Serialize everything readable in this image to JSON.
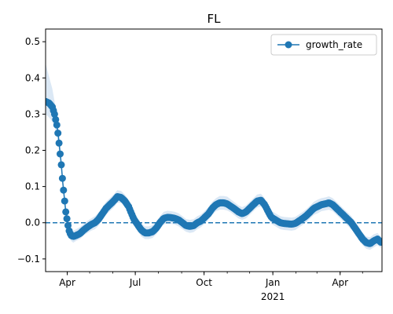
{
  "chart_data": {
    "type": "line",
    "title": "FL",
    "xlabel": "",
    "ylabel": "",
    "x_ticks": [
      {
        "date": "2020-04-01",
        "label": "Apr"
      },
      {
        "date": "2020-07-01",
        "label": "Jul"
      },
      {
        "date": "2020-10-01",
        "label": "Oct"
      },
      {
        "date": "2021-01-01",
        "label": "Jan"
      },
      {
        "date": "2021-04-01",
        "label": "Apr"
      }
    ],
    "x_year_label": "2021",
    "x_range": [
      "2020-03-03",
      "2021-05-27"
    ],
    "y_range": [
      -0.135,
      0.535
    ],
    "y_ticks": [
      -0.1,
      0.0,
      0.1,
      0.2,
      0.3,
      0.4,
      0.5
    ],
    "y_tick_labels": [
      "−0.1",
      "0.0",
      "0.1",
      "0.2",
      "0.3",
      "0.4",
      "0.5"
    ],
    "reference_line": {
      "y": 0.0,
      "style": "dashed"
    },
    "grid": false,
    "legend_position": "top-right",
    "colors": {
      "series": "#1f77b4",
      "band": "#dbe8f5"
    },
    "series": [
      {
        "name": "growth_rate",
        "x": [
          "2020-03-03",
          "2020-03-08",
          "2020-03-12",
          "2020-03-15",
          "2020-03-18",
          "2020-03-20",
          "2020-03-22",
          "2020-03-24",
          "2020-03-26",
          "2020-03-28",
          "2020-03-30",
          "2020-04-01",
          "2020-04-03",
          "2020-04-06",
          "2020-04-09",
          "2020-04-13",
          "2020-04-18",
          "2020-04-23",
          "2020-04-28",
          "2020-05-03",
          "2020-05-08",
          "2020-05-13",
          "2020-05-18",
          "2020-05-23",
          "2020-05-28",
          "2020-06-02",
          "2020-06-07",
          "2020-06-12",
          "2020-06-17",
          "2020-06-22",
          "2020-06-25",
          "2020-06-29",
          "2020-07-04",
          "2020-07-09",
          "2020-07-14",
          "2020-07-19",
          "2020-07-24",
          "2020-07-29",
          "2020-08-03",
          "2020-08-08",
          "2020-08-13",
          "2020-08-18",
          "2020-08-23",
          "2020-08-28",
          "2020-09-02",
          "2020-09-07",
          "2020-09-12",
          "2020-09-17",
          "2020-09-22",
          "2020-09-27",
          "2020-10-02",
          "2020-10-07",
          "2020-10-12",
          "2020-10-17",
          "2020-10-22",
          "2020-10-27",
          "2020-11-01",
          "2020-11-06",
          "2020-11-11",
          "2020-11-16",
          "2020-11-21",
          "2020-11-26",
          "2020-12-01",
          "2020-12-06",
          "2020-12-11",
          "2020-12-16",
          "2020-12-21",
          "2020-12-26",
          "2020-12-30",
          "2021-01-03",
          "2021-01-07",
          "2021-01-11",
          "2021-01-16",
          "2021-01-21",
          "2021-01-26",
          "2021-01-31",
          "2021-02-05",
          "2021-02-10",
          "2021-02-15",
          "2021-02-20",
          "2021-02-25",
          "2021-03-02",
          "2021-03-07",
          "2021-03-12",
          "2021-03-17",
          "2021-03-22",
          "2021-03-27",
          "2021-04-01",
          "2021-04-06",
          "2021-04-11",
          "2021-04-16",
          "2021-04-21",
          "2021-04-26",
          "2021-05-01",
          "2021-05-06",
          "2021-05-11",
          "2021-05-16",
          "2021-05-21",
          "2021-05-26"
        ],
        "y": [
          0.335,
          0.33,
          0.32,
          0.3,
          0.27,
          0.24,
          0.2,
          0.16,
          0.11,
          0.07,
          0.03,
          0.005,
          -0.02,
          -0.035,
          -0.038,
          -0.035,
          -0.03,
          -0.02,
          -0.012,
          -0.005,
          0.0,
          0.01,
          0.025,
          0.04,
          0.05,
          0.06,
          0.072,
          0.07,
          0.06,
          0.045,
          0.03,
          0.01,
          -0.005,
          -0.02,
          -0.028,
          -0.028,
          -0.025,
          -0.015,
          0.0,
          0.012,
          0.015,
          0.014,
          0.012,
          0.008,
          0.0,
          -0.008,
          -0.01,
          -0.008,
          0.0,
          0.005,
          0.015,
          0.025,
          0.04,
          0.05,
          0.055,
          0.055,
          0.052,
          0.045,
          0.038,
          0.03,
          0.025,
          0.03,
          0.04,
          0.05,
          0.06,
          0.062,
          0.05,
          0.03,
          0.015,
          0.01,
          0.005,
          0.0,
          -0.002,
          -0.003,
          -0.004,
          -0.002,
          0.005,
          0.012,
          0.02,
          0.03,
          0.04,
          0.045,
          0.05,
          0.052,
          0.055,
          0.05,
          0.04,
          0.03,
          0.02,
          0.01,
          0.0,
          -0.015,
          -0.03,
          -0.045,
          -0.055,
          -0.058,
          -0.05,
          -0.045,
          -0.055
        ],
        "band_lower": [
          0.3,
          0.29,
          0.28,
          0.265,
          0.24,
          0.215,
          0.18,
          0.14,
          0.095,
          0.055,
          0.018,
          -0.01,
          -0.035,
          -0.05,
          -0.055,
          -0.05,
          -0.045,
          -0.035,
          -0.028,
          -0.022,
          -0.018,
          -0.008,
          0.008,
          0.022,
          0.032,
          0.042,
          0.055,
          0.055,
          0.045,
          0.028,
          0.012,
          -0.008,
          -0.022,
          -0.038,
          -0.045,
          -0.045,
          -0.042,
          -0.032,
          -0.018,
          -0.005,
          -0.002,
          -0.003,
          -0.005,
          -0.01,
          -0.018,
          -0.025,
          -0.028,
          -0.026,
          -0.018,
          -0.012,
          -0.002,
          0.008,
          0.022,
          0.032,
          0.036,
          0.036,
          0.034,
          0.028,
          0.02,
          0.012,
          0.008,
          0.012,
          0.022,
          0.032,
          0.042,
          0.045,
          0.033,
          0.012,
          -0.003,
          -0.008,
          -0.013,
          -0.018,
          -0.02,
          -0.021,
          -0.022,
          -0.02,
          -0.013,
          -0.006,
          0.002,
          0.012,
          0.022,
          0.026,
          0.032,
          0.034,
          0.036,
          0.032,
          0.022,
          0.012,
          0.002,
          -0.008,
          -0.018,
          -0.033,
          -0.048,
          -0.062,
          -0.072,
          -0.075,
          -0.068,
          -0.062,
          -0.07
        ],
        "band_upper": [
          0.44,
          0.4,
          0.37,
          0.335,
          0.3,
          0.265,
          0.22,
          0.18,
          0.128,
          0.088,
          0.045,
          0.02,
          -0.005,
          -0.02,
          -0.022,
          -0.018,
          -0.012,
          -0.003,
          0.005,
          0.012,
          0.018,
          0.028,
          0.043,
          0.058,
          0.068,
          0.078,
          0.09,
          0.088,
          0.078,
          0.063,
          0.048,
          0.028,
          0.013,
          -0.002,
          -0.01,
          -0.01,
          -0.007,
          0.003,
          0.018,
          0.03,
          0.033,
          0.032,
          0.03,
          0.026,
          0.018,
          0.01,
          0.008,
          0.01,
          0.018,
          0.023,
          0.033,
          0.043,
          0.058,
          0.068,
          0.074,
          0.074,
          0.072,
          0.064,
          0.056,
          0.048,
          0.043,
          0.048,
          0.058,
          0.068,
          0.078,
          0.08,
          0.068,
          0.048,
          0.033,
          0.028,
          0.023,
          0.018,
          0.016,
          0.015,
          0.014,
          0.016,
          0.023,
          0.03,
          0.038,
          0.048,
          0.058,
          0.064,
          0.068,
          0.07,
          0.073,
          0.068,
          0.058,
          0.048,
          0.038,
          0.028,
          0.018,
          0.003,
          -0.012,
          -0.028,
          -0.038,
          -0.04,
          -0.032,
          -0.028,
          -0.04
        ]
      }
    ]
  }
}
